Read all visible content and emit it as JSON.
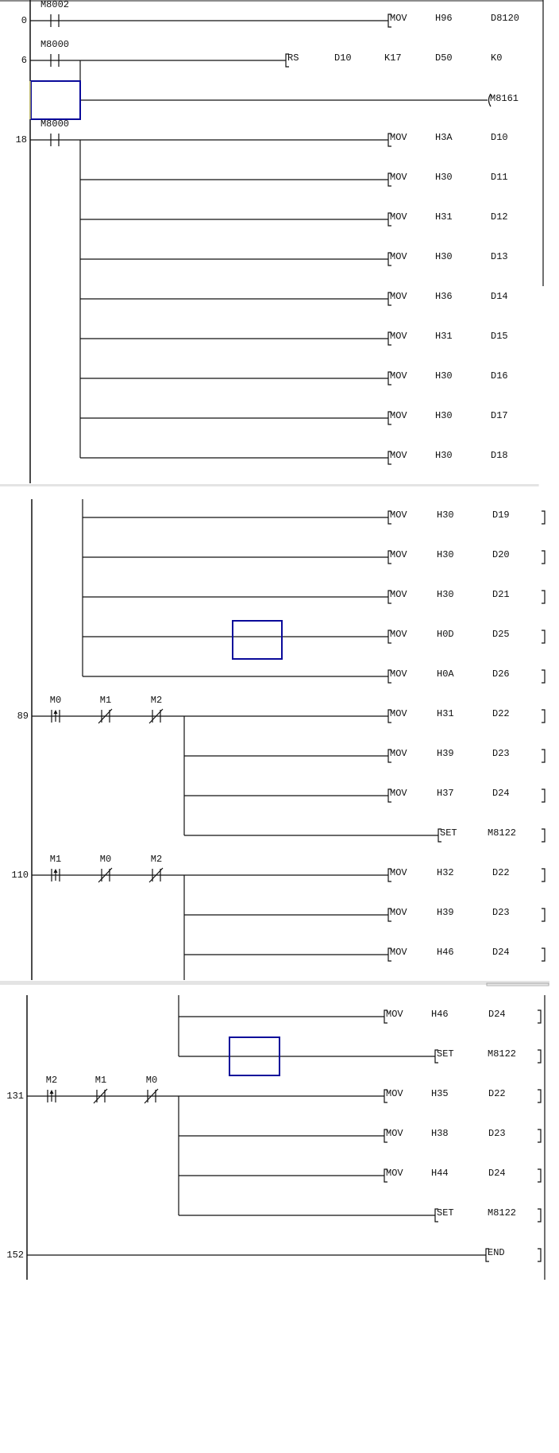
{
  "colors": {
    "line": "#111111",
    "cursor": "#0a0a9a",
    "separator": "#e4e4e4",
    "cursor_alt_edge": "#e8e060"
  },
  "sections": [
    {
      "rungs": [
        {
          "step": "0",
          "contacts": [
            {
              "label": "M8002",
              "type": "normally-open"
            }
          ],
          "outputs": [
            {
              "instr": "MOV",
              "operands": [
                "H96",
                "D8120"
              ]
            }
          ]
        },
        {
          "step": "6",
          "contacts": [
            {
              "label": "M8000",
              "type": "normally-open"
            }
          ],
          "outputs": [
            {
              "instr": "RS",
              "operands": [
                "D10",
                "K17",
                "D50",
                "K0"
              ]
            },
            {
              "coil": "M8161"
            }
          ]
        },
        {
          "step": "18",
          "contacts": [
            {
              "label": "M8000",
              "type": "normally-open"
            }
          ],
          "outputs": [
            {
              "instr": "MOV",
              "operands": [
                "H3A",
                "D10"
              ]
            },
            {
              "instr": "MOV",
              "operands": [
                "H30",
                "D11"
              ]
            },
            {
              "instr": "MOV",
              "operands": [
                "H31",
                "D12"
              ]
            },
            {
              "instr": "MOV",
              "operands": [
                "H30",
                "D13"
              ]
            },
            {
              "instr": "MOV",
              "operands": [
                "H36",
                "D14"
              ]
            },
            {
              "instr": "MOV",
              "operands": [
                "H31",
                "D15"
              ]
            },
            {
              "instr": "MOV",
              "operands": [
                "H30",
                "D16"
              ]
            },
            {
              "instr": "MOV",
              "operands": [
                "H30",
                "D17"
              ]
            },
            {
              "instr": "MOV",
              "operands": [
                "H30",
                "D18"
              ]
            }
          ]
        }
      ]
    },
    {
      "rungs": [
        {
          "step": "",
          "continuation": true,
          "contacts": [],
          "outputs": [
            {
              "instr": "MOV",
              "operands": [
                "H30",
                "D19"
              ]
            },
            {
              "instr": "MOV",
              "operands": [
                "H30",
                "D20"
              ]
            },
            {
              "instr": "MOV",
              "operands": [
                "H30",
                "D21"
              ]
            },
            {
              "instr": "MOV",
              "operands": [
                "H0D",
                "D25"
              ]
            },
            {
              "instr": "MOV",
              "operands": [
                "H0A",
                "D26"
              ]
            }
          ]
        },
        {
          "step": "89",
          "contacts": [
            {
              "label": "M0",
              "type": "rising-edge"
            },
            {
              "label": "M1",
              "type": "normally-closed"
            },
            {
              "label": "M2",
              "type": "normally-closed"
            }
          ],
          "outputs": [
            {
              "instr": "MOV",
              "operands": [
                "H31",
                "D22"
              ]
            },
            {
              "instr": "MOV",
              "operands": [
                "H39",
                "D23"
              ]
            },
            {
              "instr": "MOV",
              "operands": [
                "H37",
                "D24"
              ]
            },
            {
              "instr": "SET",
              "operands": [
                "M8122"
              ]
            }
          ]
        },
        {
          "step": "110",
          "contacts": [
            {
              "label": "M1",
              "type": "rising-edge"
            },
            {
              "label": "M0",
              "type": "normally-closed"
            },
            {
              "label": "M2",
              "type": "normally-closed"
            }
          ],
          "outputs": [
            {
              "instr": "MOV",
              "operands": [
                "H32",
                "D22"
              ]
            },
            {
              "instr": "MOV",
              "operands": [
                "H39",
                "D23"
              ]
            },
            {
              "instr": "MOV",
              "operands": [
                "H46",
                "D24"
              ]
            }
          ]
        }
      ]
    },
    {
      "rungs": [
        {
          "step": "",
          "continuation": true,
          "contacts": [],
          "outputs": [
            {
              "instr": "MOV",
              "operands": [
                "H46",
                "D24"
              ]
            },
            {
              "instr": "SET",
              "operands": [
                "M8122"
              ]
            }
          ]
        },
        {
          "step": "131",
          "contacts": [
            {
              "label": "M2",
              "type": "rising-edge"
            },
            {
              "label": "M1",
              "type": "normally-closed"
            },
            {
              "label": "M0",
              "type": "normally-closed"
            }
          ],
          "outputs": [
            {
              "instr": "MOV",
              "operands": [
                "H35",
                "D22"
              ]
            },
            {
              "instr": "MOV",
              "operands": [
                "H38",
                "D23"
              ]
            },
            {
              "instr": "MOV",
              "operands": [
                "H44",
                "D24"
              ]
            },
            {
              "instr": "SET",
              "operands": [
                "M8122"
              ]
            }
          ]
        },
        {
          "step": "152",
          "contacts": [],
          "outputs": [
            {
              "instr": "END",
              "operands": []
            }
          ]
        }
      ]
    }
  ]
}
